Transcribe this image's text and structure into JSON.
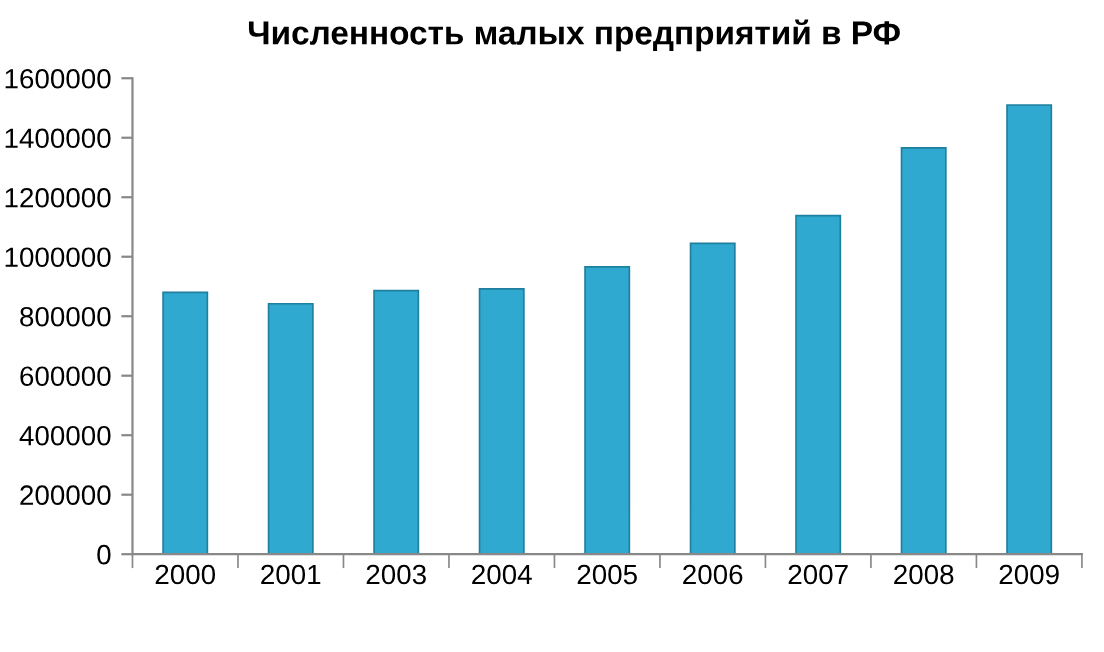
{
  "chart_data": {
    "type": "bar",
    "title": "Численность малых предприятий в РФ",
    "categories": [
      "2000",
      "2001",
      "2003",
      "2004",
      "2005",
      "2006",
      "2007",
      "2008",
      "2009"
    ],
    "values": [
      880000,
      842000,
      886000,
      892000,
      966000,
      1045000,
      1138000,
      1366000,
      1510000
    ],
    "color": "#2fa9cf",
    "ylim": [
      0,
      1600000
    ],
    "yticks": [
      0,
      200000,
      400000,
      600000,
      800000,
      1000000,
      1200000,
      1400000,
      1600000
    ],
    "grid": false
  }
}
